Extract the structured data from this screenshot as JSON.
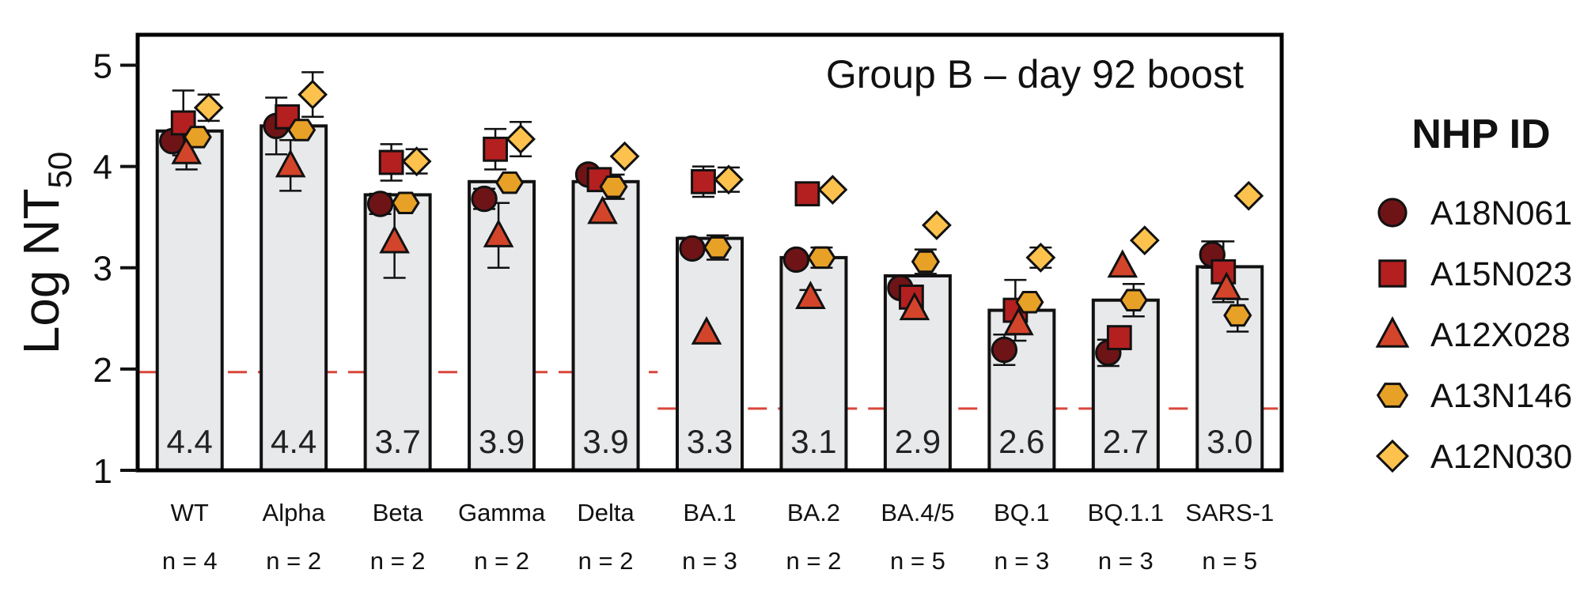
{
  "chart_data": {
    "type": "bar",
    "title": "Group B – day 92 boost",
    "ylabel": "Log NT",
    "ylabel_subscript": "50",
    "ylim": [
      1,
      5.3
    ],
    "yticks": [
      "1",
      "2",
      "3",
      "4",
      "5"
    ],
    "ytick_values": [
      1,
      2,
      3,
      4,
      5
    ],
    "categories": [
      "WT",
      "Alpha",
      "Beta",
      "Gamma",
      "Delta",
      "BA.1",
      "BA.2",
      "BA.4/5",
      "BQ.1",
      "BQ.1.1",
      "SARS-1"
    ],
    "n_labels": [
      "n = 4",
      "n = 2",
      "n = 2",
      "n = 2",
      "n = 2",
      "n = 3",
      "n = 2",
      "n = 5",
      "n = 3",
      "n = 3",
      "n = 5"
    ],
    "values": [
      4.35,
      4.4,
      3.72,
      3.85,
      3.85,
      3.29,
      3.1,
      2.92,
      2.58,
      2.68,
      3.01
    ],
    "value_labels": [
      "4.4",
      "4.4",
      "3.7",
      "3.9",
      "3.9",
      "3.3",
      "3.1",
      "2.9",
      "2.6",
      "2.7",
      "3.0"
    ],
    "legend_title": "NHP ID",
    "legend_position": "right",
    "thresholds": [
      {
        "value": 1.97,
        "from_category": 0,
        "to_category": 4
      },
      {
        "value": 1.61,
        "from_category": 5,
        "to_category": 10
      }
    ],
    "series": [
      {
        "name": "A18N061",
        "marker": "circle",
        "color": "#6e1416",
        "values": [
          4.25,
          4.4,
          3.63,
          3.68,
          3.92,
          3.19,
          3.08,
          2.8,
          2.19,
          2.16,
          3.13
        ],
        "errors": [
          null,
          0.28,
          0.1,
          0.1,
          null,
          null,
          null,
          null,
          0.15,
          0.13,
          0.13
        ]
      },
      {
        "name": "A15N023",
        "marker": "square",
        "color": "#b3201f",
        "values": [
          4.43,
          4.49,
          4.04,
          4.17,
          3.87,
          3.85,
          3.73,
          2.71,
          2.58,
          2.31,
          2.96
        ],
        "errors": [
          0.32,
          null,
          0.18,
          0.2,
          null,
          0.15,
          null,
          null,
          0.3,
          null,
          0.3
        ]
      },
      {
        "name": "A12X028",
        "marker": "triangle",
        "color": "#d3452a",
        "values": [
          4.14,
          4.01,
          3.26,
          3.32,
          3.55,
          2.36,
          2.71,
          2.6,
          2.45,
          3.02,
          2.8
        ],
        "errors": [
          0.17,
          0.25,
          0.36,
          0.32,
          null,
          null,
          0.07,
          null,
          null,
          null,
          null
        ]
      },
      {
        "name": "A13N146",
        "marker": "hexagon",
        "color": "#e8a127",
        "values": [
          4.29,
          4.36,
          3.64,
          3.84,
          3.8,
          3.2,
          3.1,
          3.06,
          2.66,
          2.68,
          2.53
        ],
        "errors": [
          null,
          null,
          null,
          null,
          0.12,
          0.12,
          0.1,
          0.12,
          null,
          0.16,
          0.16
        ]
      },
      {
        "name": "A12N030",
        "marker": "diamond",
        "color": "#fdc24d",
        "values": [
          4.58,
          4.71,
          4.05,
          4.27,
          4.1,
          3.87,
          3.77,
          3.42,
          3.1,
          3.27,
          3.71
        ],
        "errors": [
          0.13,
          0.22,
          0.12,
          0.17,
          null,
          0.12,
          null,
          null,
          0.1,
          null,
          null
        ]
      }
    ]
  }
}
